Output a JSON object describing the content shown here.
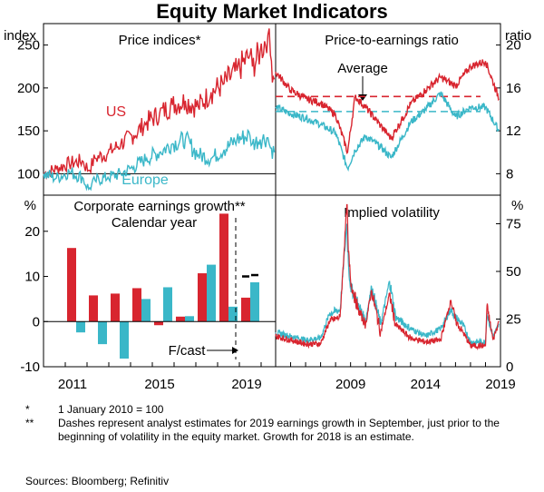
{
  "title": "Equity Market Indicators",
  "colors": {
    "us": "#d8252f",
    "europe": "#3ab7c8",
    "axis": "#000000"
  },
  "panels": {
    "price": {
      "title": "Price indices*",
      "unit": "index",
      "ylim": [
        75,
        275
      ],
      "ticks": [
        100,
        150,
        200,
        250
      ],
      "labels": {
        "us": "US",
        "europe": "Europe"
      }
    },
    "pe": {
      "title": "Price-to-earnings ratio",
      "unit": "ratio",
      "ylim": [
        6,
        22
      ],
      "ticks": [
        8,
        12,
        16,
        20
      ],
      "average_label": "Average",
      "averages": {
        "us": 15.2,
        "europe": 13.8
      }
    },
    "earnings": {
      "title": "Corporate earnings growth**",
      "subtitle": "Calendar year",
      "unit": "%",
      "ylim": [
        -10,
        28
      ],
      "ticks": [
        -10,
        0,
        10,
        20
      ],
      "forecast_label": "F/cast",
      "x_ticks": [
        "2011",
        "2015",
        "2019"
      ]
    },
    "vol": {
      "title": "Implied volatility",
      "unit": "%",
      "ylim": [
        0,
        90
      ],
      "ticks": [
        0,
        25,
        50,
        75
      ],
      "x_ticks": [
        "2009",
        "2014",
        "2019"
      ]
    }
  },
  "chart_data": [
    {
      "type": "line",
      "title": "Price indices*",
      "ylabel": "index",
      "ylim": [
        75,
        275
      ],
      "x": [
        2010.0,
        2010.5,
        2011.0,
        2011.5,
        2011.75,
        2012.0,
        2012.5,
        2013.0,
        2013.5,
        2014.0,
        2014.5,
        2015.0,
        2015.5,
        2016.0,
        2016.5,
        2017.0,
        2017.5,
        2018.0,
        2018.1,
        2018.4,
        2018.7,
        2018.8,
        2018.95
      ],
      "series": [
        {
          "name": "US",
          "values": [
            100,
            106,
            112,
            115,
            104,
            118,
            124,
            135,
            145,
            160,
            170,
            180,
            185,
            178,
            195,
            205,
            220,
            238,
            225,
            242,
            262,
            238,
            210
          ]
        },
        {
          "name": "Europe",
          "values": [
            100,
            95,
            102,
            96,
            82,
            92,
            96,
            100,
            108,
            118,
            125,
            135,
            140,
            122,
            118,
            128,
            140,
            145,
            135,
            140,
            142,
            130,
            125
          ]
        }
      ]
    },
    {
      "type": "line",
      "title": "Price-to-earnings ratio",
      "ylabel": "ratio",
      "ylim": [
        6,
        22
      ],
      "x": [
        2004.0,
        2005.0,
        2006.0,
        2007.0,
        2008.0,
        2008.8,
        2009.3,
        2010.0,
        2011.0,
        2011.7,
        2012.5,
        2013.0,
        2014.0,
        2015.0,
        2016.0,
        2017.0,
        2018.0,
        2018.9
      ],
      "series": [
        {
          "name": "US",
          "values": [
            17.5,
            15.8,
            15.0,
            14.6,
            13.5,
            10.0,
            15.2,
            14.2,
            12.5,
            11.3,
            13.2,
            14.5,
            15.8,
            17.0,
            16.2,
            18.0,
            18.5,
            15.0
          ]
        },
        {
          "name": "Europe",
          "values": [
            14.2,
            13.6,
            13.2,
            12.6,
            11.8,
            8.5,
            10.2,
            11.5,
            10.5,
            9.5,
            11.5,
            12.8,
            14.0,
            15.5,
            13.3,
            14.2,
            14.2,
            12.0
          ]
        }
      ],
      "annotations": [
        "Average"
      ]
    },
    {
      "type": "bar",
      "title": "Corporate earnings growth**",
      "subtitle": "Calendar year",
      "ylabel": "%",
      "ylim": [
        -10,
        28
      ],
      "categories": [
        "2010",
        "2011",
        "2012",
        "2013",
        "2014",
        "2015",
        "2016",
        "2017",
        "2018",
        "2019"
      ],
      "series": [
        {
          "name": "US",
          "values": [
            null,
            16.3,
            5.8,
            6.2,
            7.4,
            -0.8,
            1.1,
            10.7,
            23.9,
            5.3
          ]
        },
        {
          "name": "Europe",
          "values": [
            null,
            -2.4,
            -5.0,
            -8.2,
            5.0,
            7.6,
            1.2,
            12.6,
            3.3,
            8.7
          ]
        }
      ],
      "estimates": [
        {
          "name": "US",
          "category": "2019",
          "value": 10.0
        },
        {
          "name": "Europe",
          "category": "2019",
          "value": 10.3
        }
      ],
      "forecast_from": "2019"
    },
    {
      "type": "line",
      "title": "Implied volatility",
      "ylabel": "%",
      "ylim": [
        0,
        90
      ],
      "x": [
        2004.0,
        2005.0,
        2006.0,
        2007.0,
        2007.6,
        2008.3,
        2008.75,
        2008.85,
        2009.0,
        2009.5,
        2010.0,
        2010.4,
        2011.0,
        2011.6,
        2012.0,
        2013.0,
        2014.0,
        2015.0,
        2015.7,
        2016.0,
        2016.5,
        2017.0,
        2018.0,
        2018.1,
        2018.5,
        2018.9
      ],
      "series": [
        {
          "name": "US",
          "values": [
            16,
            14,
            12,
            12,
            24,
            26,
            85,
            60,
            45,
            30,
            22,
            40,
            18,
            38,
            22,
            15,
            13,
            14,
            35,
            24,
            18,
            11,
            11,
            32,
            14,
            24
          ]
        },
        {
          "name": "Europe",
          "values": [
            18,
            16,
            14,
            15,
            28,
            30,
            75,
            55,
            42,
            33,
            24,
            42,
            22,
            45,
            26,
            20,
            16,
            20,
            30,
            26,
            22,
            13,
            13,
            28,
            16,
            22
          ]
        }
      ]
    }
  ],
  "notes": [
    {
      "mark": "*",
      "text": "1 January 2010 = 100"
    },
    {
      "mark": "**",
      "text": "Dashes represent analyst estimates for 2019 earnings growth in September, just prior to the beginning of volatility in the equity market. Growth for 2018 is an estimate."
    }
  ],
  "sources": "Sources: Bloomberg; Refinitiv"
}
